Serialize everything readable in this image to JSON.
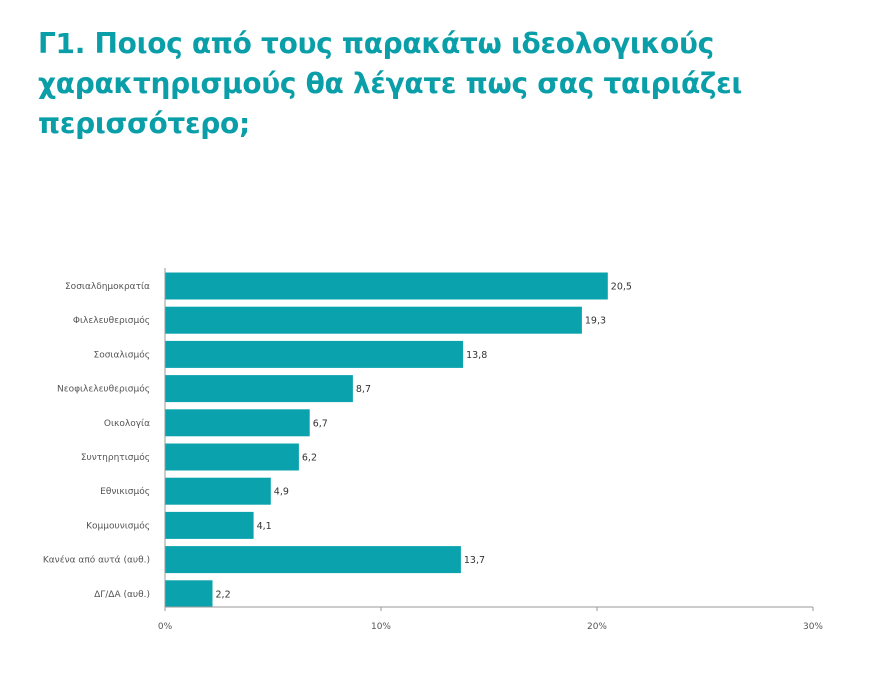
{
  "title": "Γ1. Ποιος από τους παρακάτω ιδεολογικούς χαρακτηρισμούς θα λέγατε πως σας ταιριάζει περισσότερο;",
  "colors": {
    "title": "#0a9fa8",
    "bar": "#0aa3ad",
    "axis": "#999999"
  },
  "chart_data": {
    "type": "bar",
    "orientation": "horizontal",
    "categories": [
      "Σοσιαλδημοκρατία",
      "Φιλελευθερισμός",
      "Σοσιαλισμός",
      "Νεοφιλελευθερισμός",
      "Οικολογία",
      "Συντηρητισμός",
      "Εθνικισμός",
      "Κομμουνισμός",
      "Κανένα από αυτά (αυθ.)",
      "ΔΓ/ΔΑ (αυθ.)"
    ],
    "values": [
      20.5,
      19.3,
      13.8,
      8.7,
      6.7,
      6.2,
      4.9,
      4.1,
      13.7,
      2.2
    ],
    "value_labels": [
      "20,5",
      "19,3",
      "13,8",
      "8,7",
      "6,7",
      "6,2",
      "4,9",
      "4,1",
      "13,7",
      "2,2"
    ],
    "xlim": [
      0,
      30
    ],
    "xticks": [
      0,
      10,
      20,
      30
    ],
    "xtick_labels": [
      "0%",
      "10%",
      "20%",
      "30%"
    ],
    "grid": false,
    "legend": "none"
  }
}
